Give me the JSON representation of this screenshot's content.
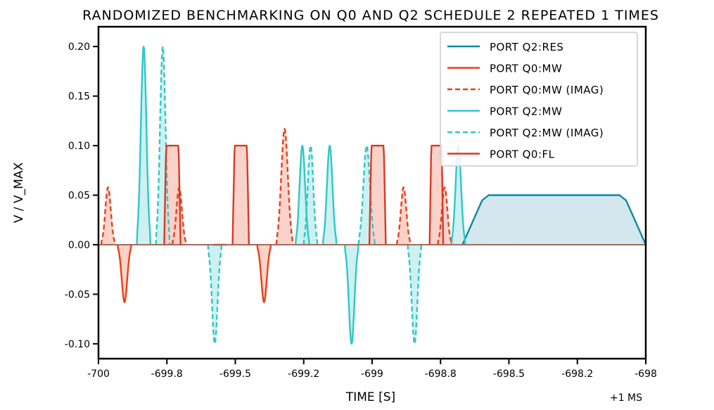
{
  "chart_data": {
    "type": "line",
    "title": "Randomized benchmarking on q0 and q2 schedule 2 repeated 1 times",
    "xlabel": "Time [s]",
    "ylabel": "V / V_max",
    "x_offset_text": "+1 ms",
    "xlim": [
      -700,
      -698
    ],
    "ylim": [
      -0.115,
      0.22
    ],
    "x_ticks": [
      {
        "value": -700,
        "label": "-700"
      },
      {
        "value": -699.75,
        "label": "-699.8"
      },
      {
        "value": -699.5,
        "label": "-699.5"
      },
      {
        "value": -699.25,
        "label": "-699.2"
      },
      {
        "value": -699.0,
        "label": "-699"
      },
      {
        "value": -698.75,
        "label": "-698.8"
      },
      {
        "value": -698.5,
        "label": "-698.5"
      },
      {
        "value": -698.25,
        "label": "-698.2"
      },
      {
        "value": -698.0,
        "label": "-698"
      }
    ],
    "y_ticks": [
      {
        "value": 0.2,
        "label": "0.20"
      },
      {
        "value": 0.15,
        "label": "0.15"
      },
      {
        "value": 0.1,
        "label": "0.10"
      },
      {
        "value": 0.05,
        "label": "0.05"
      },
      {
        "value": 0.0,
        "label": "0.00"
      },
      {
        "value": -0.05,
        "label": "-0.05"
      },
      {
        "value": -0.1,
        "label": "-0.10"
      }
    ],
    "legend_position": "top-right",
    "series": [
      {
        "name": "port q2:res",
        "color": "#0f88a0",
        "dash": "solid",
        "fill": "#cfe4ec",
        "pulses": [
          {
            "start": -698.67,
            "end": -698.0,
            "amp": 0.05,
            "shape": "flat"
          }
        ]
      },
      {
        "name": "port q0:mw",
        "color": "#e8401a",
        "dash": "solid",
        "fill": "#f8cdc4",
        "pulses": [
          {
            "start": -699.93,
            "end": -699.88,
            "amp": -0.058,
            "shape": "gauss"
          },
          {
            "start": -699.58,
            "end": -699.53,
            "amp": 0.0,
            "shape": "gauss"
          },
          {
            "start": -699.42,
            "end": -699.37,
            "amp": -0.058,
            "shape": "gauss"
          }
        ]
      },
      {
        "name": "port q0:mw (imag)",
        "color": "#e8401a",
        "dash": "dashed",
        "fill": "#f8cdc4",
        "pulses": [
          {
            "start": -699.99,
            "end": -699.94,
            "amp": 0.058,
            "shape": "gauss"
          },
          {
            "start": -699.73,
            "end": -699.68,
            "amp": 0.058,
            "shape": "gauss"
          },
          {
            "start": -699.35,
            "end": -699.29,
            "amp": 0.117,
            "shape": "gauss"
          },
          {
            "start": -698.91,
            "end": -698.86,
            "amp": 0.058,
            "shape": "gauss"
          },
          {
            "start": -698.76,
            "end": -698.71,
            "amp": 0.058,
            "shape": "gauss"
          }
        ]
      },
      {
        "name": "port q2:mw",
        "color": "#2ec8c8",
        "dash": "solid",
        "fill": "#c9eeee",
        "pulses": [
          {
            "start": -699.86,
            "end": -699.81,
            "amp": 0.2,
            "shape": "gauss"
          },
          {
            "start": -699.28,
            "end": -699.23,
            "amp": 0.1,
            "shape": "gauss"
          },
          {
            "start": -699.18,
            "end": -699.13,
            "amp": 0.1,
            "shape": "gauss"
          },
          {
            "start": -699.1,
            "end": -699.05,
            "amp": -0.1,
            "shape": "gauss"
          },
          {
            "start": -698.71,
            "end": -698.66,
            "amp": 0.1,
            "shape": "gauss"
          }
        ]
      },
      {
        "name": "port q2:mw (imag)",
        "color": "#2ec8c8",
        "dash": "dashed",
        "fill": "#c9eeee",
        "pulses": [
          {
            "start": -699.79,
            "end": -699.74,
            "amp": 0.2,
            "shape": "gauss"
          },
          {
            "start": -699.6,
            "end": -699.55,
            "amp": -0.1,
            "shape": "gauss"
          },
          {
            "start": -699.25,
            "end": -699.2,
            "amp": 0.1,
            "shape": "gauss"
          },
          {
            "start": -699.05,
            "end": -698.99,
            "amp": 0.1,
            "shape": "gauss"
          },
          {
            "start": -698.87,
            "end": -698.82,
            "amp": -0.1,
            "shape": "gauss"
          }
        ]
      },
      {
        "name": "port q0:fl",
        "color": "#d63a26",
        "dash": "solid",
        "fill": "#f8cdc4",
        "pulses": [
          {
            "start": -699.76,
            "end": -699.7,
            "amp": 0.1,
            "shape": "flat"
          },
          {
            "start": -699.51,
            "end": -699.45,
            "amp": 0.1,
            "shape": "flat"
          },
          {
            "start": -699.01,
            "end": -698.95,
            "amp": 0.1,
            "shape": "flat"
          },
          {
            "start": -698.79,
            "end": -698.74,
            "amp": 0.1,
            "shape": "flat"
          }
        ]
      }
    ]
  }
}
